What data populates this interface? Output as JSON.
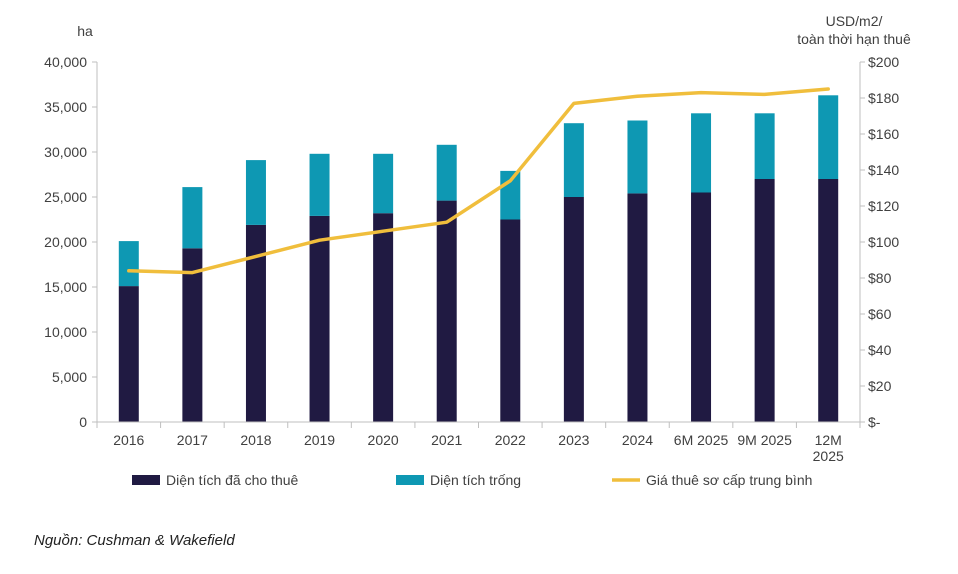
{
  "chart_data": {
    "type": "bar+line",
    "stacked": true,
    "categories": [
      "2016",
      "2017",
      "2018",
      "2019",
      "2020",
      "2021",
      "2022",
      "2023",
      "2024",
      "6M 2025",
      "9M 2025",
      "12M 2025"
    ],
    "series": [
      {
        "name": "Diện tích đã cho thuê",
        "type": "bar",
        "axis": "left",
        "values": [
          15100,
          19300,
          21900,
          22900,
          23200,
          24600,
          22500,
          25000,
          25400,
          25500,
          27000,
          27000
        ]
      },
      {
        "name": "Diện tích trống",
        "type": "bar",
        "axis": "left",
        "values": [
          5000,
          6800,
          7200,
          6900,
          6600,
          6200,
          5400,
          8200,
          8100,
          8800,
          7300,
          9300
        ]
      },
      {
        "name": "Giá thuê sơ cấp trung bình",
        "type": "line",
        "axis": "right",
        "values": [
          84,
          83,
          92,
          101,
          106,
          111,
          134,
          177,
          181,
          183,
          182,
          185
        ]
      }
    ],
    "left_axis": {
      "label": "ha",
      "ylim": [
        0,
        40000
      ],
      "ticks": [
        {
          "v": 0,
          "t": "0"
        },
        {
          "v": 5000,
          "t": "5,000"
        },
        {
          "v": 10000,
          "t": "10,000"
        },
        {
          "v": 15000,
          "t": "15,000"
        },
        {
          "v": 20000,
          "t": "20,000"
        },
        {
          "v": 25000,
          "t": "25,000"
        },
        {
          "v": 30000,
          "t": "30,000"
        },
        {
          "v": 35000,
          "t": "35,000"
        },
        {
          "v": 40000,
          "t": "40,000"
        }
      ]
    },
    "right_axis": {
      "label_lines": [
        "USD/m2/",
        "toàn thời hạn thuê"
      ],
      "ylim": [
        0,
        200
      ],
      "ticks": [
        {
          "v": 0,
          "t": "$-"
        },
        {
          "v": 20,
          "t": "$20"
        },
        {
          "v": 40,
          "t": "$40"
        },
        {
          "v": 60,
          "t": "$60"
        },
        {
          "v": 80,
          "t": "$80"
        },
        {
          "v": 100,
          "t": "$100"
        },
        {
          "v": 120,
          "t": "$120"
        },
        {
          "v": 140,
          "t": "$140"
        },
        {
          "v": 160,
          "t": "$160"
        },
        {
          "v": 180,
          "t": "$180"
        },
        {
          "v": 200,
          "t": "$200"
        }
      ]
    },
    "legend_position": "bottom",
    "grid": false,
    "colors": {
      "leased": "#201a42",
      "vacant": "#0e98b3",
      "rent": "#f0be3c",
      "axis": "#bfbfbf"
    }
  },
  "source": "Nguồn: Cushman & Wakefield"
}
